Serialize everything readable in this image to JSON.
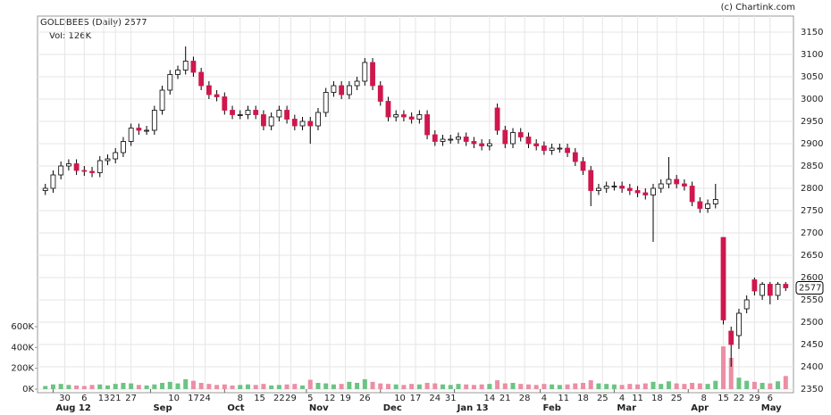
{
  "chart_data": {
    "type": "candlestick",
    "title": "GOLDBEES (Daily) 2577",
    "volume_label": "Vol: 126K",
    "credit": "(c) Chartink.com",
    "up_color": "#ffffff",
    "down_color": "#d0174d",
    "volume_up_color": "#6cc383",
    "volume_down_color": "#ec8ea4",
    "grid": true,
    "xlim": [
      -2,
      192
    ],
    "ylim": [
      2350,
      3150
    ],
    "yticks": [
      2350,
      2400,
      2450,
      2500,
      2550,
      2600,
      2650,
      2700,
      2750,
      2800,
      2850,
      2900,
      2950,
      3000,
      3050,
      3100,
      3150
    ],
    "vlim": [
      0,
      600000
    ],
    "vticks": [
      {
        "value": 0,
        "label": "0K"
      },
      {
        "value": 200000,
        "label": "200K"
      },
      {
        "value": 400000,
        "label": "400K"
      },
      {
        "value": 600000,
        "label": "600K"
      }
    ],
    "xticks": [
      {
        "value": 5,
        "label": "30"
      },
      {
        "value": 10,
        "label": "6"
      },
      {
        "value": 15,
        "label": "13"
      },
      {
        "value": 18,
        "label": "21"
      },
      {
        "value": 22,
        "label": "27"
      },
      {
        "value": 33,
        "label": "10"
      },
      {
        "value": 38,
        "label": "17"
      },
      {
        "value": 41,
        "label": "24"
      },
      {
        "value": 50,
        "label": "8"
      },
      {
        "value": 55,
        "label": "15"
      },
      {
        "value": 60,
        "label": "22"
      },
      {
        "value": 63,
        "label": "29"
      },
      {
        "value": 68,
        "label": "5"
      },
      {
        "value": 73,
        "label": "12"
      },
      {
        "value": 77,
        "label": "19"
      },
      {
        "value": 82,
        "label": "26"
      },
      {
        "value": 91,
        "label": "10"
      },
      {
        "value": 95,
        "label": "17"
      },
      {
        "value": 100,
        "label": "24"
      },
      {
        "value": 104,
        "label": "31"
      },
      {
        "value": 114,
        "label": "14"
      },
      {
        "value": 118,
        "label": "21"
      },
      {
        "value": 123,
        "label": "28"
      },
      {
        "value": 128,
        "label": "4"
      },
      {
        "value": 133,
        "label": "11"
      },
      {
        "value": 138,
        "label": "18"
      },
      {
        "value": 143,
        "label": "25"
      },
      {
        "value": 148,
        "label": "4"
      },
      {
        "value": 152,
        "label": "11"
      },
      {
        "value": 157,
        "label": "18"
      },
      {
        "value": 162,
        "label": "25"
      },
      {
        "value": 169,
        "label": "8"
      },
      {
        "value": 174,
        "label": "15"
      },
      {
        "value": 178,
        "label": "22"
      },
      {
        "value": 182,
        "label": "29"
      },
      {
        "value": 186,
        "label": "6"
      }
    ],
    "month_ticks": [
      {
        "value": 2,
        "label": "Aug 12"
      },
      {
        "value": 27,
        "label": "Sep"
      },
      {
        "value": 46,
        "label": "Oct"
      },
      {
        "value": 67,
        "label": "Nov"
      },
      {
        "value": 86,
        "label": "Dec"
      },
      {
        "value": 105,
        "label": "Jan 13"
      },
      {
        "value": 127,
        "label": "Feb"
      },
      {
        "value": 146,
        "label": "Mar"
      },
      {
        "value": 165,
        "label": "Apr"
      },
      {
        "value": 183,
        "label": "May"
      }
    ],
    "x": [
      0,
      2,
      4,
      6,
      8,
      10,
      12,
      14,
      16,
      18,
      20,
      22,
      24,
      26,
      28,
      30,
      32,
      34,
      36,
      38,
      40,
      42,
      44,
      46,
      48,
      50,
      52,
      54,
      56,
      58,
      60,
      62,
      64,
      66,
      68,
      70,
      72,
      74,
      76,
      78,
      80,
      82,
      84,
      86,
      88,
      90,
      92,
      94,
      96,
      98,
      100,
      102,
      104,
      106,
      108,
      110,
      112,
      114,
      116,
      118,
      120,
      122,
      124,
      126,
      128,
      130,
      132,
      134,
      136,
      138,
      140,
      142,
      144,
      146,
      148,
      150,
      152,
      154,
      156,
      158,
      160,
      162,
      164,
      166,
      168,
      170,
      172,
      174,
      176,
      178,
      180,
      182,
      184,
      186,
      188,
      190
    ],
    "open": [
      2795,
      2800,
      2830,
      2850,
      2855,
      2840,
      2838,
      2835,
      2862,
      2866,
      2880,
      2905,
      2935,
      2930,
      2930,
      2975,
      3020,
      3055,
      3065,
      3085,
      3060,
      3030,
      3010,
      3005,
      2975,
      2965,
      2965,
      2975,
      2965,
      2940,
      2960,
      2975,
      2955,
      2940,
      2950,
      2940,
      2970,
      3015,
      3030,
      3010,
      3030,
      3040,
      3082,
      3030,
      2995,
      2960,
      2965,
      2960,
      2955,
      2965,
      2920,
      2905,
      2910,
      2910,
      2915,
      2905,
      2900,
      2895,
      2980,
      2930,
      2900,
      2925,
      2915,
      2900,
      2895,
      2885,
      2890,
      2890,
      2880,
      2860,
      2840,
      2795,
      2800,
      2805,
      2805,
      2800,
      2795,
      2790,
      2785,
      2800,
      2810,
      2820,
      2810,
      2805,
      2770,
      2755,
      2765,
      2690,
      2480,
      2470,
      2530,
      2595,
      2560,
      2585,
      2560,
      2585
    ],
    "high": [
      2810,
      2840,
      2860,
      2865,
      2865,
      2850,
      2848,
      2872,
      2876,
      2890,
      2915,
      2945,
      2945,
      2940,
      2985,
      3030,
      3065,
      3075,
      3118,
      3095,
      3070,
      3040,
      3020,
      3015,
      2985,
      2975,
      2985,
      2985,
      2975,
      2970,
      2985,
      2985,
      2965,
      2960,
      2960,
      2980,
      3025,
      3040,
      3040,
      3040,
      3050,
      3092,
      3092,
      3040,
      3005,
      2975,
      2975,
      2970,
      2975,
      2975,
      2930,
      2920,
      2920,
      2925,
      2925,
      2915,
      2910,
      2910,
      2990,
      2940,
      2935,
      2935,
      2925,
      2910,
      2905,
      2900,
      2900,
      2900,
      2890,
      2870,
      2850,
      2810,
      2815,
      2815,
      2815,
      2810,
      2805,
      2800,
      2810,
      2820,
      2870,
      2830,
      2820,
      2815,
      2780,
      2775,
      2810,
      2690,
      2490,
      2530,
      2560,
      2600,
      2590,
      2590,
      2590,
      2590
    ],
    "low": [
      2785,
      2790,
      2820,
      2840,
      2830,
      2828,
      2825,
      2825,
      2852,
      2856,
      2870,
      2895,
      2920,
      2920,
      2920,
      2965,
      3010,
      3045,
      3055,
      3050,
      3020,
      3000,
      2995,
      2965,
      2955,
      2955,
      2955,
      2955,
      2930,
      2930,
      2950,
      2945,
      2930,
      2930,
      2900,
      2930,
      2960,
      3005,
      3000,
      3000,
      3020,
      3030,
      3020,
      2985,
      2950,
      2950,
      2950,
      2945,
      2945,
      2910,
      2895,
      2895,
      2900,
      2900,
      2895,
      2890,
      2885,
      2885,
      2920,
      2890,
      2890,
      2905,
      2890,
      2885,
      2875,
      2875,
      2880,
      2870,
      2850,
      2830,
      2760,
      2785,
      2790,
      2795,
      2790,
      2785,
      2780,
      2775,
      2680,
      2790,
      2800,
      2800,
      2795,
      2760,
      2745,
      2745,
      2755,
      2495,
      2400,
      2440,
      2520,
      2560,
      2550,
      2540,
      2550,
      2570
    ],
    "close": [
      2800,
      2830,
      2850,
      2855,
      2840,
      2838,
      2835,
      2862,
      2866,
      2880,
      2905,
      2935,
      2930,
      2930,
      2975,
      3020,
      3055,
      3065,
      3085,
      3060,
      3030,
      3010,
      3005,
      2975,
      2965,
      2965,
      2975,
      2965,
      2940,
      2960,
      2975,
      2955,
      2940,
      2950,
      2940,
      2970,
      3015,
      3030,
      3010,
      3030,
      3040,
      3082,
      3030,
      2995,
      2960,
      2965,
      2960,
      2955,
      2965,
      2920,
      2905,
      2910,
      2910,
      2915,
      2905,
      2900,
      2895,
      2900,
      2930,
      2900,
      2925,
      2915,
      2900,
      2895,
      2885,
      2890,
      2890,
      2880,
      2860,
      2840,
      2795,
      2800,
      2805,
      2805,
      2800,
      2795,
      2790,
      2785,
      2800,
      2810,
      2820,
      2810,
      2805,
      2770,
      2755,
      2765,
      2775,
      2505,
      2450,
      2520,
      2550,
      2570,
      2585,
      2560,
      2585,
      2577
    ],
    "volume": [
      30000,
      45000,
      50000,
      40000,
      35000,
      30000,
      40000,
      45000,
      35000,
      50000,
      60000,
      55000,
      40000,
      35000,
      45000,
      60000,
      70000,
      55000,
      95000,
      80000,
      60000,
      50000,
      40000,
      45000,
      35000,
      40000,
      45000,
      40000,
      50000,
      35000,
      40000,
      45000,
      50000,
      35000,
      90000,
      60000,
      55000,
      45000,
      50000,
      70000,
      60000,
      95000,
      70000,
      55000,
      50000,
      45000,
      40000,
      50000,
      45000,
      60000,
      55000,
      45000,
      40000,
      50000,
      45000,
      40000,
      45000,
      50000,
      85000,
      55000,
      60000,
      50000,
      45000,
      40000,
      50000,
      45000,
      40000,
      45000,
      55000,
      60000,
      85000,
      55000,
      50000,
      45000,
      40000,
      50000,
      45000,
      55000,
      70000,
      50000,
      75000,
      55000,
      50000,
      60000,
      55000,
      50000,
      80000,
      410000,
      300000,
      110000,
      80000,
      70000,
      60000,
      55000,
      75000,
      126000
    ]
  }
}
